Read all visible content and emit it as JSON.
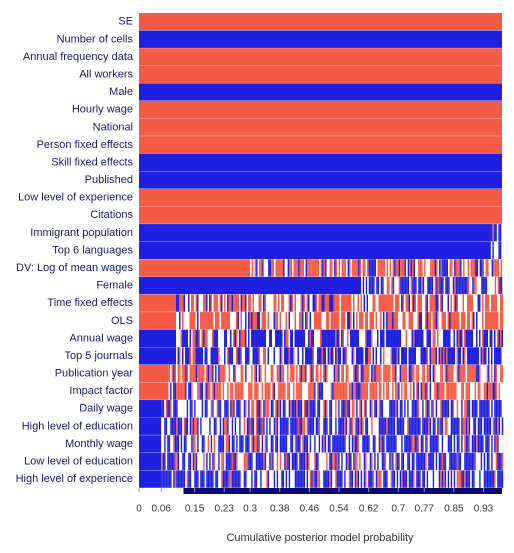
{
  "chart_data": {
    "type": "model-inclusion",
    "xlabel": "Cumulative posterior model probability",
    "xlim": [
      0,
      0.98
    ],
    "xticks": [
      0,
      0.06,
      0.15,
      0.23,
      0.3,
      0.38,
      0.46,
      0.54,
      0.62,
      0.7,
      0.77,
      0.85,
      0.93
    ],
    "rows": [
      {
        "name": "SE",
        "color": "#f45a45",
        "mixed_from": 0.98
      },
      {
        "name": "Number of cells",
        "color": "#1f1fe0",
        "mixed_from": 0.98
      },
      {
        "name": "Annual frequency data",
        "color": "#f45a45",
        "mixed_from": 0.98
      },
      {
        "name": "All workers",
        "color": "#f45a45",
        "mixed_from": 0.98
      },
      {
        "name": "Male",
        "color": "#1f1fe0",
        "mixed_from": 0.98
      },
      {
        "name": "Hourly wage",
        "color": "#f45a45",
        "mixed_from": 0.98
      },
      {
        "name": "National",
        "color": "#f45a45",
        "mixed_from": 0.98
      },
      {
        "name": "Person fixed effects",
        "color": "#f45a45",
        "mixed_from": 0.98
      },
      {
        "name": "Skill fixed effects",
        "color": "#1f1fe0",
        "mixed_from": 0.98
      },
      {
        "name": "Published",
        "color": "#1f1fe0",
        "mixed_from": 0.98
      },
      {
        "name": "Low level of experience",
        "color": "#f45a45",
        "mixed_from": 0.98
      },
      {
        "name": "Citations",
        "color": "#f45a45",
        "mixed_from": 0.98
      },
      {
        "name": "Immigrant population",
        "color": "#1f1fe0",
        "mixed_from": 0.95
      },
      {
        "name": "Top 6 languages",
        "color": "#1f1fe0",
        "mixed_from": 0.95
      },
      {
        "name": "DV: Log of mean wages",
        "color": "#f45a45",
        "mixed_from": 0.3
      },
      {
        "name": "Female",
        "color": "#1f1fe0",
        "mixed_from": 0.6
      },
      {
        "name": "Time fixed effects",
        "color": "#f45a45",
        "mixed_from": 0.1
      },
      {
        "name": "OLS",
        "color": "#f45a45",
        "mixed_from": 0.1
      },
      {
        "name": "Annual wage",
        "color": "#1f1fe0",
        "mixed_from": 0.1
      },
      {
        "name": "Top 5 journals",
        "color": "#1f1fe0",
        "mixed_from": 0.1
      },
      {
        "name": "Publication year",
        "color": "#f45a45",
        "mixed_from": 0.08
      },
      {
        "name": "Impact factor",
        "color": "#f45a45",
        "mixed_from": 0.08
      },
      {
        "name": "Daily wage",
        "color": "#1f1fe0",
        "mixed_from": 0.06
      },
      {
        "name": "High level of education",
        "color": "#1f1fe0",
        "mixed_from": 0.06
      },
      {
        "name": "Monthly wage",
        "color": "#1f1fe0",
        "mixed_from": 0.06
      },
      {
        "name": "Low level of education",
        "color": "#1f1fe0",
        "mixed_from": 0.06
      },
      {
        "name": "High level of experience",
        "color": "#1f1fe0",
        "mixed_from": 0.06
      }
    ]
  }
}
